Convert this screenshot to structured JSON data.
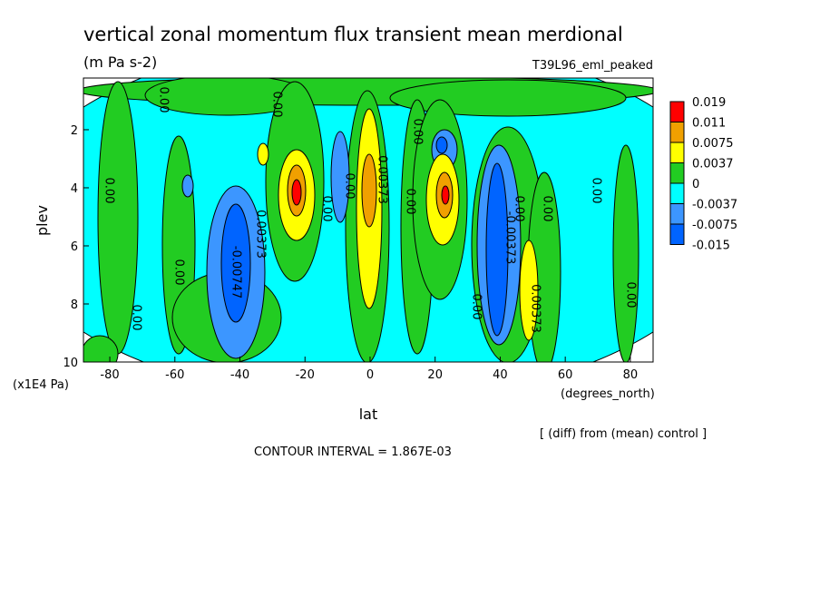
{
  "chart_data": {
    "type": "contour",
    "title": "vertical zonal momentum flux transient mean merdional",
    "units": "(m Pa s-2)",
    "dataset": "T39L96_eml_peaked",
    "xlabel": "lat",
    "xunits": "(degrees_north)",
    "ylabel": "plev",
    "yunits": "(x1E4 Pa)",
    "note": "[ (diff) from (mean) control ]",
    "contour_interval": "CONTOUR INTERVAL = 1.867E-03",
    "xlim": [
      -88.1,
      87.0
    ],
    "xticks": [
      -80,
      -60,
      -40,
      -20,
      0,
      20,
      40,
      60,
      80
    ],
    "ylim": [
      10,
      0.22
    ],
    "yticks": [
      2,
      4,
      6,
      8,
      10
    ],
    "levels": [
      0.019,
      0.011,
      0.0075,
      0.0037,
      0,
      -0.0037,
      -0.0075,
      -0.015
    ],
    "colors": [
      "#ff0000",
      "#f0a000",
      "#ffff00",
      "#22cc22",
      "#00ffff",
      "#3c96ff",
      "#0064ff"
    ],
    "contour_labels": [
      "0.00",
      "0.00",
      "0.00",
      "-0.00747",
      "0.00373",
      "0.00",
      "0.00",
      "0.00",
      "0.00",
      "0.00373",
      "0.00",
      "0.00",
      "0.00",
      "-0.00373",
      "0.00",
      "0.00",
      "0.00",
      "0.00373",
      "0.00"
    ]
  }
}
